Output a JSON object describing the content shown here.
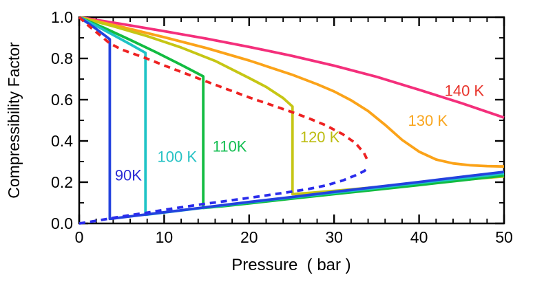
{
  "figure": {
    "xlabel": "Pressure  ( bar )",
    "ylabel": "Compressibility Factor",
    "background": "#ffffff",
    "frame_color": "#000000"
  },
  "chart_data": {
    "type": "line",
    "title": "",
    "xlabel": "Pressure ( bar )",
    "ylabel": "Compressibility Factor",
    "xlim": [
      0,
      50
    ],
    "ylim": [
      0.0,
      1.0
    ],
    "grid": false,
    "legend_position": "inline-curve-labels",
    "x_tick_labels": [
      "0",
      "10",
      "20",
      "30",
      "40",
      "50"
    ],
    "x_major_ticks": [
      0,
      10,
      20,
      30,
      40,
      50
    ],
    "x_minor_step": 2,
    "y_tick_labels": [
      "0.0",
      "0.2",
      "0.4",
      "0.6",
      "0.8",
      "1.0"
    ],
    "y_major_ticks": [
      0.0,
      0.2,
      0.4,
      0.6,
      0.8,
      1.0
    ],
    "y_minor_step": 0.1,
    "series": [
      {
        "name": "isotherm-140K",
        "label": "140 K",
        "color": "#F42F7B",
        "label_color": "#E8322A",
        "label_pos": [
          43.0,
          0.645
        ],
        "style": "solid",
        "points": [
          [
            0,
            1.0
          ],
          [
            5,
            0.967
          ],
          [
            10,
            0.932
          ],
          [
            15,
            0.896
          ],
          [
            20,
            0.856
          ],
          [
            25,
            0.813
          ],
          [
            30,
            0.765
          ],
          [
            35,
            0.711
          ],
          [
            40,
            0.648
          ],
          [
            45,
            0.583
          ],
          [
            50,
            0.513
          ]
        ]
      },
      {
        "name": "isotherm-130K",
        "label": "130 K",
        "color": "#FBA319",
        "label_color": "#F9A61F",
        "label_pos": [
          38.7,
          0.5
        ],
        "style": "solid",
        "points": [
          [
            0,
            1.0
          ],
          [
            5,
            0.953
          ],
          [
            10,
            0.903
          ],
          [
            15,
            0.85
          ],
          [
            20,
            0.79
          ],
          [
            25,
            0.722
          ],
          [
            28,
            0.675
          ],
          [
            30,
            0.64
          ],
          [
            32,
            0.597
          ],
          [
            34,
            0.545
          ],
          [
            36,
            0.478
          ],
          [
            38,
            0.405
          ],
          [
            40,
            0.348
          ],
          [
            42,
            0.31
          ],
          [
            44,
            0.291
          ],
          [
            46,
            0.282
          ],
          [
            48,
            0.278
          ],
          [
            50,
            0.276
          ]
        ]
      },
      {
        "name": "isotherm-120K",
        "label": "120 K",
        "color": "#C6C614",
        "label_color": "#BCBC10",
        "label_pos": [
          26.0,
          0.42
        ],
        "style": "solid",
        "points": [
          [
            0,
            1.0
          ],
          [
            4,
            0.956
          ],
          [
            8,
            0.908
          ],
          [
            12,
            0.853
          ],
          [
            16,
            0.788
          ],
          [
            20,
            0.705
          ],
          [
            22,
            0.662
          ],
          [
            24,
            0.608
          ],
          [
            25.1,
            0.567
          ],
          [
            25.1,
            0.142
          ],
          [
            27,
            0.148
          ],
          [
            30,
            0.158
          ],
          [
            35,
            0.176
          ],
          [
            40,
            0.194
          ],
          [
            45,
            0.211
          ],
          [
            50,
            0.228
          ]
        ]
      },
      {
        "name": "isotherm-110K",
        "label": "110K",
        "color": "#12BC41",
        "label_color": "#13BE51",
        "label_pos": [
          15.7,
          0.375
        ],
        "style": "solid",
        "points": [
          [
            0,
            1.0
          ],
          [
            3,
            0.947
          ],
          [
            6,
            0.89
          ],
          [
            9,
            0.831
          ],
          [
            12,
            0.769
          ],
          [
            14.6,
            0.713
          ],
          [
            14.6,
            0.075
          ],
          [
            17,
            0.084
          ],
          [
            20,
            0.097
          ],
          [
            25,
            0.12
          ],
          [
            30,
            0.142
          ],
          [
            35,
            0.164
          ],
          [
            40,
            0.186
          ],
          [
            45,
            0.209
          ],
          [
            50,
            0.232
          ]
        ]
      },
      {
        "name": "isotherm-100K",
        "label": "100 K",
        "color": "#1EC3C6",
        "label_color": "#26C2C4",
        "label_pos": [
          9.2,
          0.325
        ],
        "style": "solid",
        "points": [
          [
            0,
            1.0
          ],
          [
            2,
            0.958
          ],
          [
            4,
            0.914
          ],
          [
            6,
            0.869
          ],
          [
            7.8,
            0.827
          ],
          [
            7.8,
            0.042
          ],
          [
            10,
            0.053
          ],
          [
            15,
            0.078
          ],
          [
            20,
            0.102
          ],
          [
            25,
            0.126
          ],
          [
            30,
            0.149
          ],
          [
            35,
            0.172
          ],
          [
            40,
            0.196
          ],
          [
            45,
            0.219
          ],
          [
            50,
            0.242
          ]
        ]
      },
      {
        "name": "isotherm-90K",
        "label": "90K",
        "color": "#2342DE",
        "label_color": "#2B2BD5",
        "label_pos": [
          4.2,
          0.235
        ],
        "style": "solid",
        "points": [
          [
            0,
            1.0
          ],
          [
            1,
            0.972
          ],
          [
            2,
            0.943
          ],
          [
            3,
            0.912
          ],
          [
            3.6,
            0.893
          ],
          [
            3.6,
            0.022
          ],
          [
            5,
            0.029
          ],
          [
            10,
            0.054
          ],
          [
            15,
            0.079
          ],
          [
            20,
            0.104
          ],
          [
            25,
            0.128
          ],
          [
            30,
            0.153
          ],
          [
            35,
            0.177
          ],
          [
            40,
            0.201
          ],
          [
            45,
            0.226
          ],
          [
            50,
            0.25
          ]
        ]
      },
      {
        "name": "saturated-vapor-boundary",
        "label": "",
        "color": "#EE2222",
        "label_color": "#EE2222",
        "label_pos": null,
        "style": "dashed",
        "points": [
          [
            0,
            1.0
          ],
          [
            1,
            0.962
          ],
          [
            2,
            0.928
          ],
          [
            3.6,
            0.873
          ],
          [
            5,
            0.843
          ],
          [
            7.8,
            0.802
          ],
          [
            10,
            0.766
          ],
          [
            12,
            0.735
          ],
          [
            14.6,
            0.694
          ],
          [
            17,
            0.657
          ],
          [
            20,
            0.611
          ],
          [
            22.5,
            0.576
          ],
          [
            25.1,
            0.539
          ],
          [
            27,
            0.51
          ],
          [
            29,
            0.476
          ],
          [
            31,
            0.433
          ],
          [
            32.5,
            0.39
          ],
          [
            33.5,
            0.343
          ],
          [
            34,
            0.3
          ]
        ]
      },
      {
        "name": "saturated-liquid-boundary",
        "label": "",
        "color": "#2A2CEC",
        "label_color": "#2A2CEC",
        "label_pos": null,
        "style": "dashed",
        "points": [
          [
            0,
            0.0
          ],
          [
            1,
            0.006
          ],
          [
            2,
            0.013
          ],
          [
            3.6,
            0.024
          ],
          [
            5,
            0.034
          ],
          [
            7.8,
            0.051
          ],
          [
            10,
            0.066
          ],
          [
            14.6,
            0.094
          ],
          [
            17,
            0.107
          ],
          [
            20,
            0.124
          ],
          [
            25,
            0.154
          ],
          [
            27,
            0.167
          ],
          [
            29,
            0.184
          ],
          [
            31,
            0.208
          ],
          [
            32.5,
            0.233
          ],
          [
            33.5,
            0.253
          ],
          [
            34,
            0.268
          ]
        ]
      }
    ]
  }
}
